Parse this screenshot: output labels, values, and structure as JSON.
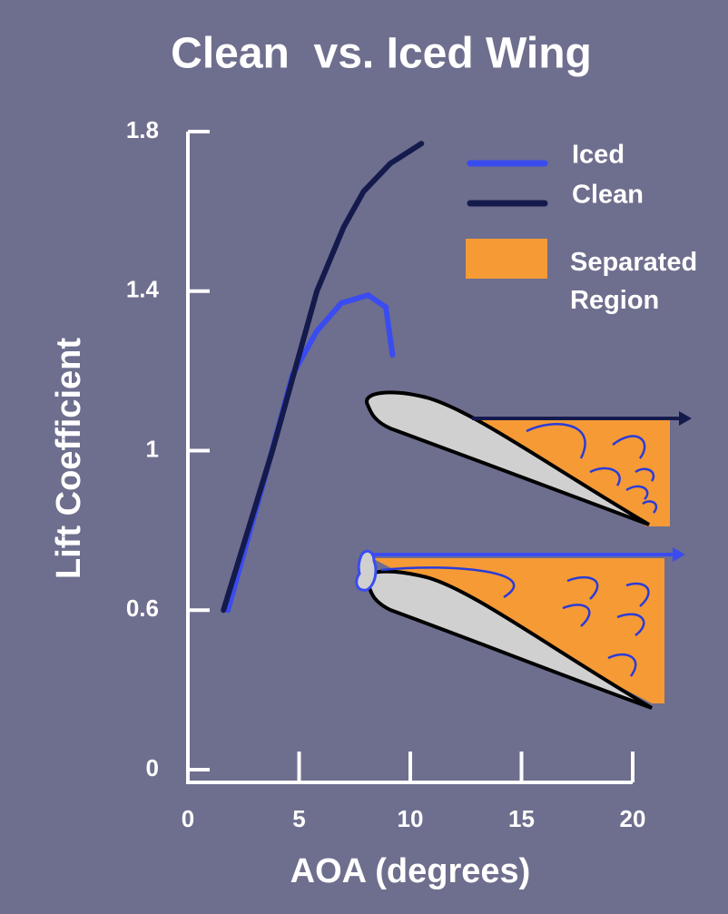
{
  "chart_data": {
    "type": "line",
    "title": "Clean  vs. Iced Wing",
    "x_label": "AOA (degrees)",
    "y_label": "Lift Coefficient",
    "xlim": [
      0,
      20
    ],
    "xticks": [
      0,
      5,
      10,
      15,
      20
    ],
    "ylim": [
      0,
      1.8
    ],
    "yticks": [
      0,
      0.6,
      1.0,
      1.4,
      1.8
    ],
    "series": [
      {
        "name": "Iced",
        "color": "#3a4cf0",
        "x": [
          1.8,
          3.3,
          4.7,
          5.8,
          6.9,
          8.1,
          8.9,
          9.2
        ],
        "values": [
          0.6,
          0.9,
          1.19,
          1.3,
          1.37,
          1.39,
          1.36,
          1.24
        ]
      },
      {
        "name": "Clean",
        "color": "#141a4c",
        "x": [
          1.6,
          3.8,
          5.8,
          7,
          7.9,
          9.1,
          10.5
        ],
        "values": [
          0.6,
          1.0,
          1.4,
          1.56,
          1.65,
          1.72,
          1.77
        ]
      }
    ],
    "region_legend": {
      "name": "Separated Region",
      "color": "#f59a35"
    }
  }
}
